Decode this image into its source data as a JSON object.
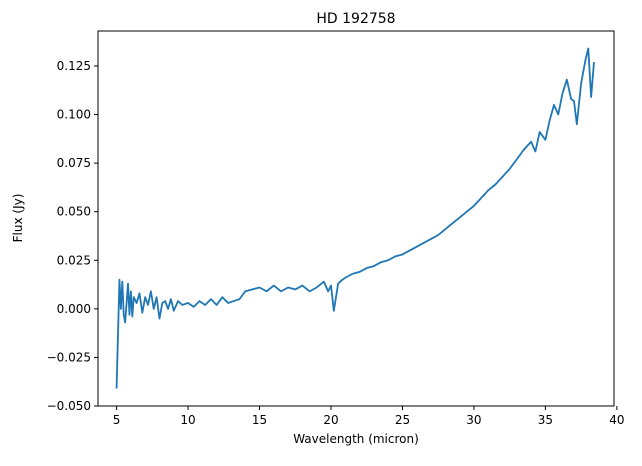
{
  "chart_data": {
    "type": "line",
    "title": "HD 192758",
    "xlabel": "Wavelength (micron)",
    "ylabel": "Flux (Jy)",
    "xlim": [
      3.7,
      39.8
    ],
    "ylim": [
      -0.05,
      0.143
    ],
    "xticks": [
      5,
      10,
      15,
      20,
      25,
      30,
      35,
      40
    ],
    "xtick_labels": [
      "5",
      "10",
      "15",
      "20",
      "25",
      "30",
      "35",
      "40"
    ],
    "yticks": [
      -0.05,
      -0.025,
      0,
      0.025,
      0.05,
      0.075,
      0.1,
      0.125
    ],
    "ytick_labels": [
      "−0.050",
      "−0.025",
      "0.000",
      "0.025",
      "0.050",
      "0.075",
      "0.100",
      "0.125"
    ],
    "grid": false,
    "series": [
      {
        "color": "#1f77b4",
        "x": [
          5.0,
          5.2,
          5.3,
          5.4,
          5.5,
          5.6,
          5.7,
          5.8,
          5.9,
          6.0,
          6.1,
          6.2,
          6.4,
          6.6,
          6.8,
          7.0,
          7.2,
          7.4,
          7.6,
          7.8,
          8.0,
          8.2,
          8.4,
          8.6,
          8.8,
          9.0,
          9.3,
          9.6,
          10.0,
          10.4,
          10.8,
          11.2,
          11.6,
          12.0,
          12.4,
          12.8,
          13.2,
          13.6,
          14.0,
          14.5,
          15.0,
          15.5,
          16.0,
          16.5,
          17.0,
          17.5,
          18.0,
          18.5,
          19.0,
          19.5,
          19.8,
          20.0,
          20.2,
          20.5,
          20.8,
          21.0,
          21.5,
          22.0,
          22.5,
          23.0,
          23.5,
          24.0,
          24.5,
          25.0,
          25.5,
          26.0,
          26.5,
          27.0,
          27.5,
          28.0,
          28.5,
          29.0,
          29.5,
          30.0,
          30.5,
          31.0,
          31.5,
          32.0,
          32.5,
          33.0,
          33.5,
          34.0,
          34.3,
          34.6,
          35.0,
          35.3,
          35.6,
          35.9,
          36.2,
          36.5,
          36.8,
          37.0,
          37.2,
          37.5,
          37.8,
          38.0,
          38.2,
          38.4
        ],
        "y": [
          -0.041,
          0.015,
          0.0,
          0.014,
          -0.003,
          -0.007,
          0.003,
          0.013,
          -0.003,
          0.009,
          -0.004,
          0.006,
          0.003,
          0.008,
          -0.002,
          0.006,
          0.002,
          0.009,
          0.0,
          0.006,
          -0.005,
          0.003,
          0.004,
          0.0,
          0.005,
          -0.001,
          0.004,
          0.002,
          0.003,
          0.001,
          0.004,
          0.002,
          0.005,
          0.002,
          0.006,
          0.003,
          0.004,
          0.005,
          0.009,
          0.01,
          0.011,
          0.009,
          0.012,
          0.009,
          0.011,
          0.01,
          0.012,
          0.009,
          0.011,
          0.014,
          0.009,
          0.012,
          -0.001,
          0.013,
          0.015,
          0.016,
          0.018,
          0.019,
          0.021,
          0.022,
          0.024,
          0.025,
          0.027,
          0.028,
          0.03,
          0.032,
          0.034,
          0.036,
          0.038,
          0.041,
          0.044,
          0.047,
          0.05,
          0.053,
          0.057,
          0.061,
          0.064,
          0.068,
          0.072,
          0.077,
          0.082,
          0.086,
          0.081,
          0.091,
          0.087,
          0.097,
          0.105,
          0.1,
          0.111,
          0.118,
          0.108,
          0.107,
          0.095,
          0.116,
          0.128,
          0.134,
          0.109,
          0.127
        ]
      }
    ]
  }
}
